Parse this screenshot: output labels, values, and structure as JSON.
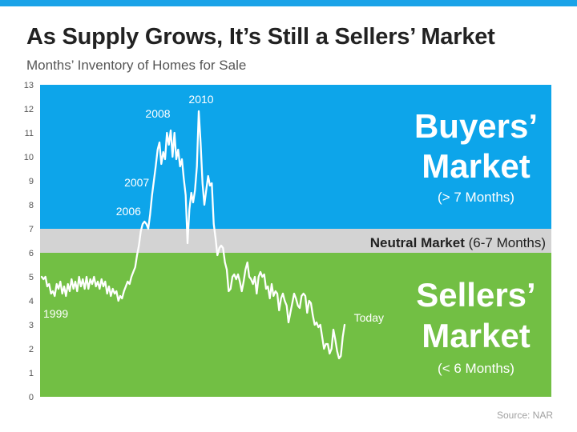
{
  "header": {
    "title": "As Supply Grows, It’s Still a Sellers’ Market",
    "subtitle": "Months’ Inventory of Homes for Sale"
  },
  "footer": {
    "source": "Source: NAR"
  },
  "colors": {
    "accent_bar": "#1aa3e8",
    "buyers": "#0da5ea",
    "neutral": "#d3d3d3",
    "sellers": "#72bf44",
    "line": "#ffffff"
  },
  "chart_data": {
    "type": "line",
    "title": "As Supply Grows, It’s Still a Sellers’ Market",
    "subtitle": "Months’ Inventory of Homes for Sale",
    "ylim": [
      0,
      13
    ],
    "y_ticks": [
      "0",
      "1",
      "2",
      "3",
      "4",
      "5",
      "6",
      "7",
      "8",
      "9",
      "10",
      "11",
      "12",
      "13"
    ],
    "grid": false,
    "zones": [
      {
        "name": "sellers",
        "from": 0,
        "to": 6,
        "title_line1": "Sellers’",
        "title_line2": "Market",
        "note": "(< 6 Months)",
        "color": "#72bf44"
      },
      {
        "name": "neutral",
        "from": 6,
        "to": 7,
        "title": "Neutral Market",
        "note": "(6-7 Months)",
        "color": "#d3d3d3"
      },
      {
        "name": "buyers",
        "from": 7,
        "to": 13,
        "title_line1": "Buyers’",
        "title_line2": "Market",
        "note": "(> 7 Months)",
        "color": "#0da5ea"
      }
    ],
    "series": [
      {
        "values": [
          5.0,
          4.9,
          5.0,
          4.6,
          4.7,
          4.3,
          4.4,
          4.2,
          4.7,
          4.5,
          4.8,
          4.3,
          4.6,
          4.2,
          4.7,
          4.4,
          4.9,
          4.5,
          4.8,
          4.4,
          5.0,
          4.6,
          4.9,
          4.5,
          5.0,
          4.5,
          4.9,
          4.7,
          5.0,
          4.6,
          4.8,
          4.5,
          4.9,
          4.6,
          4.8,
          4.3,
          4.6,
          4.2,
          4.5,
          4.3,
          4.4,
          4.0,
          4.2,
          4.1,
          4.4,
          4.6,
          4.8,
          4.7,
          5.0,
          5.2,
          5.4,
          5.9,
          6.3,
          6.9,
          7.2,
          7.3,
          7.2,
          7.0,
          7.6,
          8.4,
          9.0,
          9.6,
          10.3,
          10.6,
          9.7,
          10.2,
          9.9,
          11.0,
          10.5,
          11.1,
          10.0,
          11.0,
          9.9,
          10.3,
          9.6,
          9.9,
          9.1,
          8.4,
          6.4,
          7.8,
          8.5,
          8.1,
          8.6,
          9.6,
          11.9,
          10.6,
          8.9,
          8.0,
          8.6,
          9.2,
          8.8,
          8.9,
          7.2,
          6.6,
          5.9,
          6.2,
          6.3,
          6.2,
          5.6,
          5.3,
          4.4,
          4.5,
          5.0,
          5.1,
          4.9,
          5.1,
          4.8,
          4.4,
          4.8,
          5.3,
          5.6,
          5.0,
          4.9,
          4.7,
          5.0,
          4.3,
          5.0,
          5.2,
          5.0,
          5.1,
          4.5,
          4.6,
          4.1,
          4.7,
          4.2,
          4.4,
          4.3,
          3.6,
          4.1,
          4.3,
          4.0,
          3.8,
          3.1,
          3.5,
          3.9,
          4.3,
          4.1,
          3.8,
          3.7,
          4.2,
          4.3,
          4.2,
          3.5,
          4.0,
          3.9,
          3.4,
          3.0,
          3.1,
          2.9,
          3.0,
          2.5,
          2.0,
          2.2,
          2.2,
          1.8,
          2.0,
          2.8,
          2.4,
          1.9,
          1.6,
          1.7,
          2.5,
          3.0
        ]
      }
    ],
    "annotations": [
      {
        "text": "1999",
        "i": 0,
        "y": 5.0
      },
      {
        "text": "2006",
        "i": 55,
        "y": 7.3
      },
      {
        "text": "2007",
        "i": 62,
        "y": 10.3
      },
      {
        "text": "2008",
        "i": 69,
        "y": 11.1
      },
      {
        "text": "2010",
        "i": 84,
        "y": 11.9
      },
      {
        "text": "Today",
        "i": 169,
        "y": 3.0
      }
    ]
  }
}
